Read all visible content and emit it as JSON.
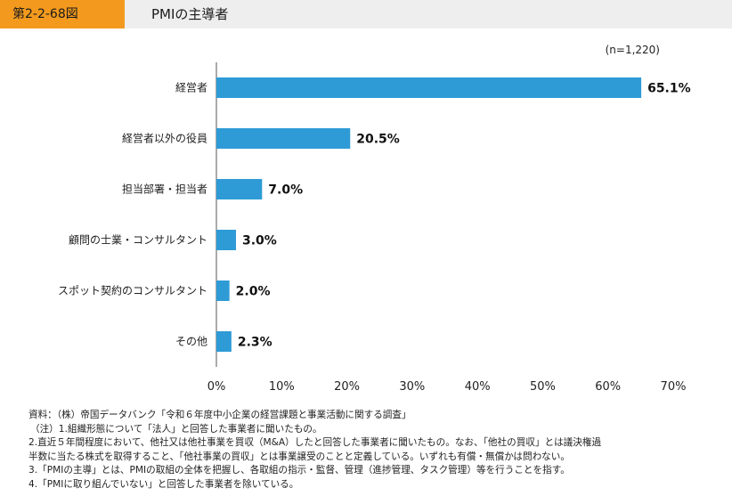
{
  "header": {
    "figure_number": "第2-2-68図",
    "title": "PMIの主導者"
  },
  "chart_data": {
    "type": "bar",
    "orientation": "horizontal",
    "note": "(n=1,220)",
    "categories": [
      "経営者",
      "経営者以外の役員",
      "担当部署・担当者",
      "顧問の士業・コンサルタント",
      "スポット契約のコンサルタント",
      "その他"
    ],
    "values": [
      65.1,
      20.5,
      7.0,
      3.0,
      2.0,
      2.3
    ],
    "value_labels": [
      "65.1%",
      "20.5%",
      "7.0%",
      "3.0%",
      "2.0%",
      "2.3%"
    ],
    "xlim": [
      0,
      70
    ],
    "x_ticks": [
      "0%",
      "10%",
      "20%",
      "30%",
      "40%",
      "50%",
      "60%",
      "70%"
    ],
    "bar_color": "#2e9bd6",
    "grid": false
  },
  "notes": {
    "source": "資料：（株）帝国データバンク「令和６年度中小企業の経営課題と事業活動に関する調査」",
    "note1": "（注）1.組織形態について「法人」と回答した事業者に聞いたもの。",
    "note2a": "2.直近５年間程度において、他社又は他社事業を買収（M&A）したと回答した事業者に聞いたもの。なお、「他社の買収」とは議決権過",
    "note2b": "半数に当たる株式を取得すること、「他社事業の買収」とは事業譲受のことと定義している。いずれも有償・無償かは問わない。",
    "note3": "3.「PMIの主導」とは、PMIの取組の全体を把握し、各取組の指示・監督、管理（進捗管理、タスク管理）等を行うことを指す。",
    "note4": "4.「PMIに取り組んでいない」と回答した事業者を除いている。"
  }
}
